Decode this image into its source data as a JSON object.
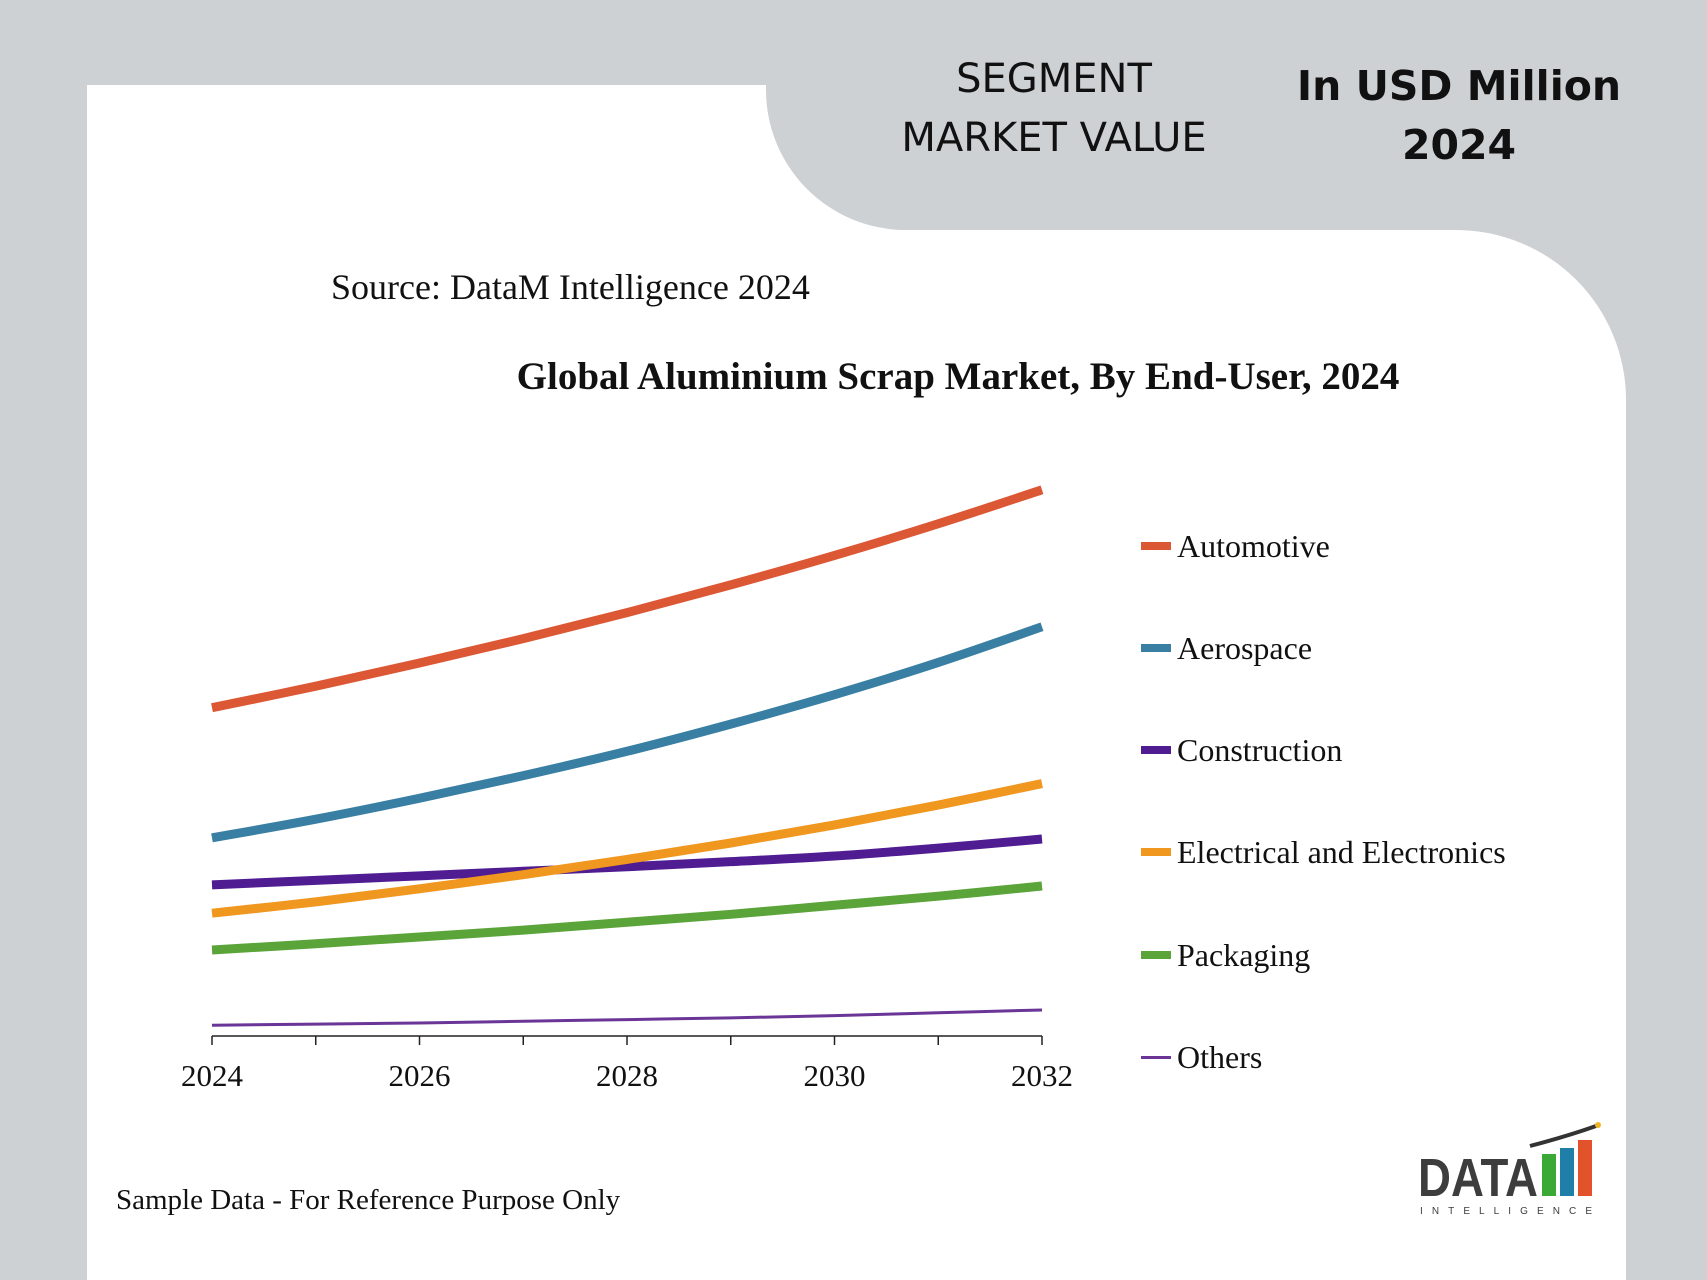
{
  "header": {
    "segment_line1": "SEGMENT",
    "segment_line2": "MARKET VALUE",
    "unit_line1": "In USD Million",
    "unit_line2": "2024"
  },
  "source": "Source: DataM Intelligence 2024",
  "footer": "Sample Data - For Reference Purpose Only",
  "logo": {
    "text": "DATA",
    "subtext": "INTELLIGENCE",
    "colors": [
      "#3aa935",
      "#1f7fa8",
      "#e2532b"
    ]
  },
  "chart_data": {
    "type": "line",
    "title": "Global Aluminium Scrap Market, By End-User, 2024",
    "xlabel": "",
    "ylabel": "",
    "x": [
      2024,
      2025,
      2026,
      2027,
      2028,
      2029,
      2030,
      2031,
      2032
    ],
    "x_tick_labels": [
      "2024",
      "2026",
      "2028",
      "2030",
      "2032"
    ],
    "ylim": [
      0,
      100
    ],
    "y_axis_visible": false,
    "grid": false,
    "legend_position": "right",
    "series": [
      {
        "name": "Automotive",
        "color": "#dc5734",
        "values": [
          58,
          61.8,
          65.9,
          70.2,
          74.8,
          79.7,
          84.9,
          90.5,
          96.5
        ]
      },
      {
        "name": "Aerospace",
        "color": "#387fa3",
        "values": [
          35,
          38.3,
          42.0,
          46.0,
          50.3,
          55.1,
          60.3,
          66.0,
          72.3
        ]
      },
      {
        "name": "Construction",
        "color": "#501c92",
        "values": [
          26.7,
          27.5,
          28.3,
          29.1,
          29.9,
          30.8,
          31.8,
          33.2,
          34.8
        ]
      },
      {
        "name": "Electrical and Electronics",
        "color": "#f0971f",
        "values": [
          21.7,
          23.7,
          26.0,
          28.5,
          31.2,
          34.1,
          37.3,
          40.8,
          44.6
        ]
      },
      {
        "name": "Packaging",
        "color": "#5aa43a",
        "values": [
          15.2,
          16.3,
          17.5,
          18.7,
          20.1,
          21.5,
          23.1,
          24.7,
          26.5
        ]
      },
      {
        "name": "Others",
        "color": "#6a3596",
        "values": [
          1.9,
          2.1,
          2.3,
          2.6,
          2.9,
          3.2,
          3.6,
          4.1,
          4.6
        ]
      }
    ]
  }
}
